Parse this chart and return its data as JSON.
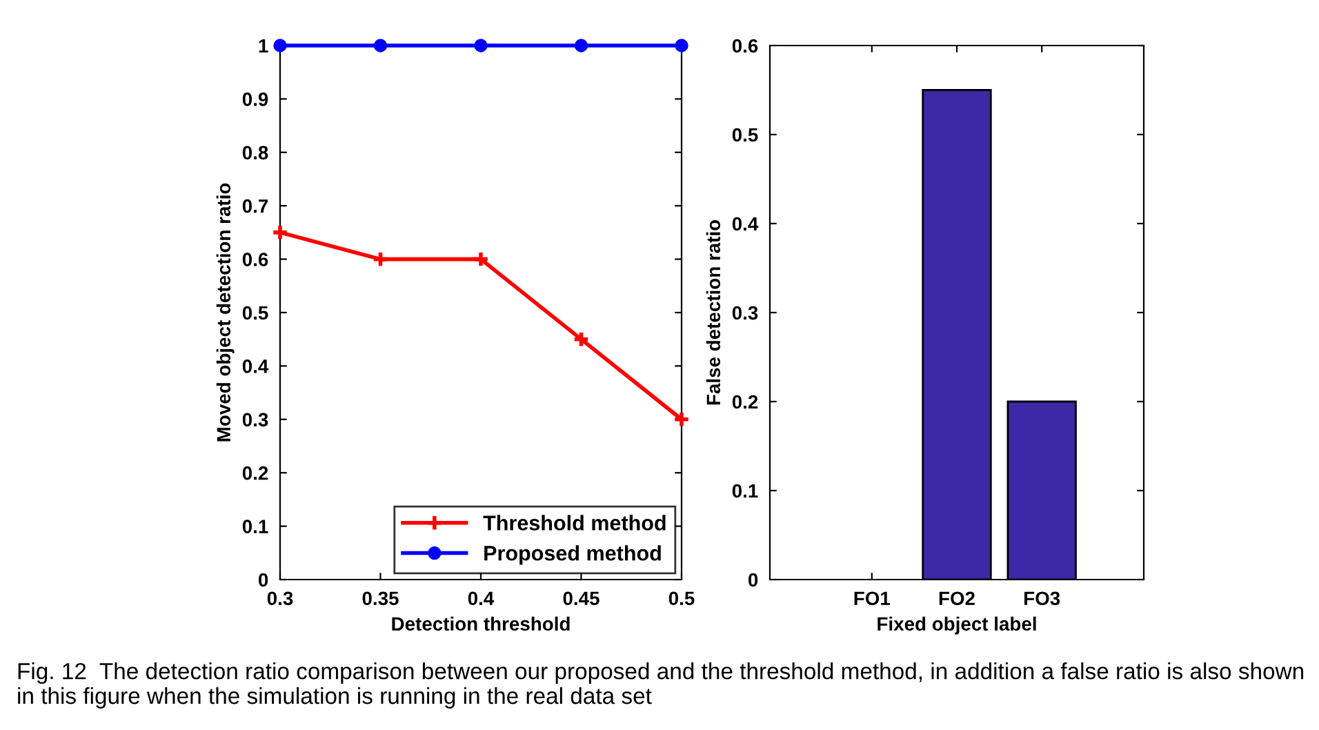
{
  "chart_data": [
    {
      "type": "line",
      "xlabel": "Detection threshold",
      "ylabel": "Moved object detection ratio",
      "x": [
        0.3,
        0.35,
        0.4,
        0.45,
        0.5
      ],
      "series": [
        {
          "name": "Threshold method",
          "color": "#ff0000",
          "marker": "cross",
          "values": [
            0.65,
            0.6,
            0.6,
            0.45,
            0.3
          ]
        },
        {
          "name": "Proposed method",
          "color": "#0000ff",
          "marker": "circle",
          "values": [
            1,
            1,
            1,
            1,
            1
          ]
        }
      ],
      "xlim": [
        0.3,
        0.5
      ],
      "xticks": [
        0.3,
        0.35,
        0.4,
        0.45,
        0.5
      ],
      "ylim": [
        0,
        1
      ],
      "yticks": [
        0,
        0.1,
        0.2,
        0.3,
        0.4,
        0.5,
        0.6,
        0.7,
        0.8,
        0.9,
        1
      ],
      "grid": false,
      "legend": "bottom right",
      "line_style": "solid"
    },
    {
      "type": "bar",
      "xlabel": "Fixed object label",
      "ylabel": "False detection ratio",
      "categories": [
        "FO1",
        "FO2",
        "FO3"
      ],
      "values": [
        0,
        0.55,
        0.2
      ],
      "color": "#3d29a6",
      "ylim": [
        0,
        0.6
      ],
      "yticks": [
        0,
        0.1,
        0.2,
        0.3,
        0.4,
        0.5,
        0.6
      ],
      "grid": false,
      "annotations": [
        "Fig. 12  The detection ratio comparison between our proposed and the threshold method, in addition a false ratio is also shown in this figure when the simulation is running in the real data set"
      ]
    }
  ]
}
